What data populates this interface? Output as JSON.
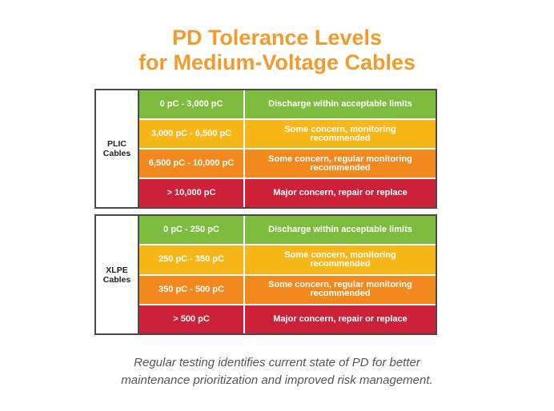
{
  "title": {
    "line1": "PD Tolerance Levels",
    "line2": "for Medium-Voltage Cables"
  },
  "tables": [
    {
      "label_line1": "PLIC",
      "label_line2": "Cables",
      "rows": [
        {
          "range": "0 pC - 3,000 pC",
          "desc_line1": "Discharge within acceptable limits",
          "desc_line2": "",
          "status": "green"
        },
        {
          "range": "3,000 pC - 6,500 pC",
          "desc_line1": "Some concern, monitoring",
          "desc_line2": "recommended",
          "status": "yellow"
        },
        {
          "range": "6,500 pC - 10,000 pC",
          "desc_line1": "Some concern, regular monitoring",
          "desc_line2": "recommended",
          "status": "orange"
        },
        {
          "range": "> 10,000 pC",
          "desc_line1": "Major concern, repair or replace",
          "desc_line2": "",
          "status": "red"
        }
      ]
    },
    {
      "label_line1": "XLPE",
      "label_line2": "Cables",
      "rows": [
        {
          "range": "0 pC - 250 pC",
          "desc_line1": "Discharge within acceptable limits",
          "desc_line2": "",
          "status": "green"
        },
        {
          "range": "250 pC - 350 pC",
          "desc_line1": "Some concern, monitoring",
          "desc_line2": "recommended",
          "status": "yellow"
        },
        {
          "range": "350 pC - 500 pC",
          "desc_line1": "Some concern, regular monitoring",
          "desc_line2": "recommended",
          "status": "orange"
        },
        {
          "range": "> 500 pC",
          "desc_line1": "Major concern, repair or replace",
          "desc_line2": "",
          "status": "red"
        }
      ]
    }
  ],
  "caption": {
    "line1": "Regular testing identifies current state of PD for better",
    "line2": "maintenance prioritization and improved risk management."
  },
  "colors": {
    "title": "#F39A2C",
    "green": "#7DBC3E",
    "yellow": "#F7B719",
    "orange": "#F2891E",
    "red": "#CD2039"
  }
}
